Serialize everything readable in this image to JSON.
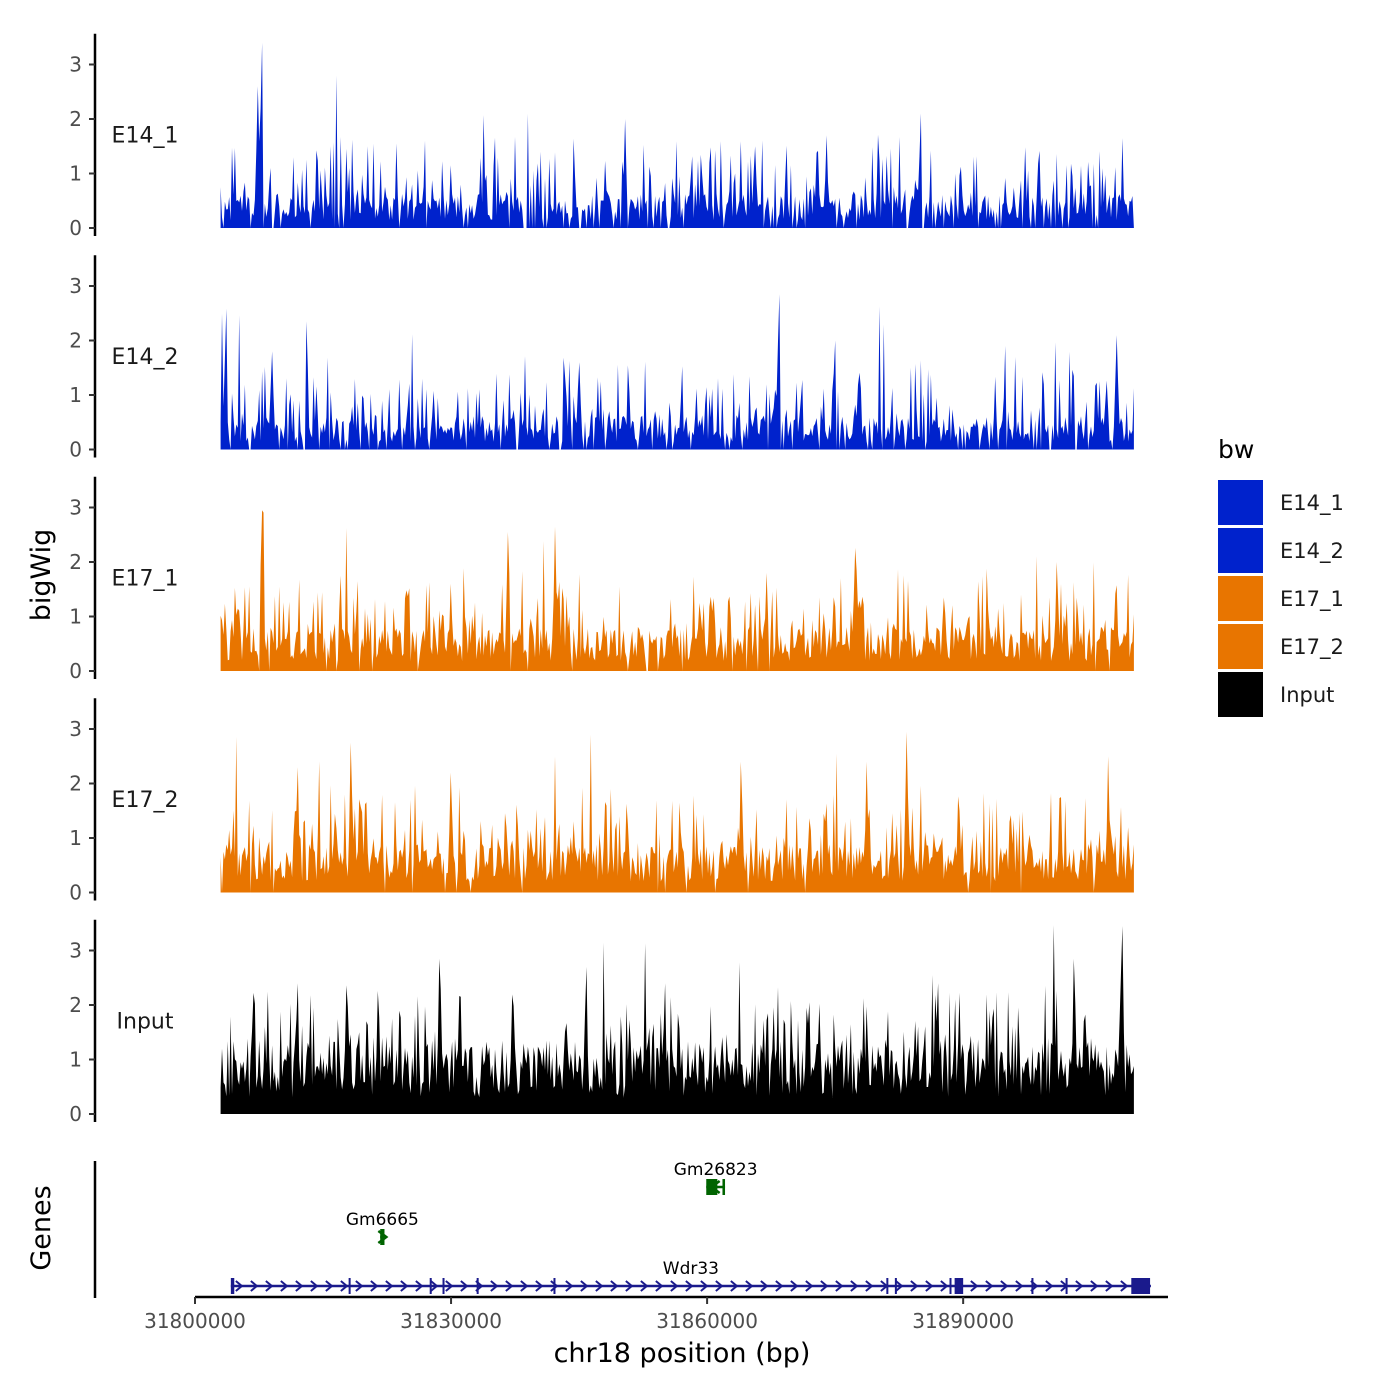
{
  "chart_data": {
    "type": "area",
    "chromosome": "chr18",
    "xlabel": "chr18 position (bp)",
    "ylabel": "bigWig",
    "genes_label": "Genes",
    "xlim": [
      31800000,
      31914000
    ],
    "x_ticks": [
      31800000,
      31830000,
      31860000,
      31890000
    ],
    "x_tick_labels": [
      "31800000",
      "31830000",
      "31860000",
      "31890000"
    ],
    "ylim": [
      0,
      3.6
    ],
    "y_ticks": [
      0,
      1,
      2,
      3
    ],
    "y_tick_labels": [
      "0",
      "1",
      "2",
      "3"
    ],
    "legend": {
      "title": "bw",
      "entries": [
        {
          "name": "E14_1",
          "color": "#0022cc"
        },
        {
          "name": "E14_2",
          "color": "#0022cc"
        },
        {
          "name": "E17_1",
          "color": "#e87500"
        },
        {
          "name": "E17_2",
          "color": "#e87500"
        },
        {
          "name": "Input",
          "color": "#000000"
        }
      ]
    },
    "series": [
      {
        "name": "E14_1",
        "color": "#0022cc",
        "baseline": 0.35,
        "noise": 1.0,
        "gapProb": 0.12,
        "x_range": [
          31803000,
          31910000
        ],
        "peaks": [
          [
            31807800,
            3.4
          ],
          [
            31807400,
            2.6
          ],
          [
            31850400,
            2.0
          ],
          [
            31865600,
            1.5
          ],
          [
            31885000,
            2.1
          ],
          [
            31827000,
            1.6
          ],
          [
            31874000,
            1.7
          ]
        ]
      },
      {
        "name": "E14_2",
        "color": "#0022cc",
        "baseline": 0.35,
        "noise": 1.0,
        "gapProb": 0.1,
        "x_range": [
          31803000,
          31910000
        ],
        "peaks": [
          [
            31868400,
            2.85
          ],
          [
            31813000,
            2.35
          ],
          [
            31908000,
            2.1
          ],
          [
            31875000,
            2.0
          ],
          [
            31809000,
            1.8
          ],
          [
            31845000,
            1.6
          ],
          [
            31895000,
            1.9
          ]
        ]
      },
      {
        "name": "E17_1",
        "color": "#e87500",
        "baseline": 0.45,
        "noise": 1.0,
        "gapProb": 0.04,
        "x_range": [
          31803000,
          31910000
        ],
        "peaks": [
          [
            31807800,
            2.95
          ],
          [
            31836700,
            2.55
          ],
          [
            31842200,
            2.65
          ],
          [
            31819000,
            1.65
          ],
          [
            31867000,
            1.8
          ],
          [
            31901000,
            2.0
          ],
          [
            31830000,
            1.6
          ]
        ]
      },
      {
        "name": "E17_2",
        "color": "#e87500",
        "baseline": 0.5,
        "noise": 1.0,
        "gapProb": 0.04,
        "x_range": [
          31803000,
          31910000
        ],
        "peaks": [
          [
            31883400,
            2.95
          ],
          [
            31818300,
            2.75
          ],
          [
            31878700,
            2.4
          ],
          [
            31907000,
            2.5
          ],
          [
            31812000,
            2.3
          ],
          [
            31830000,
            2.2
          ],
          [
            31864000,
            2.4
          ]
        ]
      },
      {
        "name": "Input",
        "color": "#000000",
        "baseline": 0.75,
        "noise": 1.0,
        "gapProb": 0.0,
        "x_range": [
          31803000,
          31910000
        ],
        "peaks": [
          [
            31908600,
            3.45
          ],
          [
            31903000,
            2.85
          ],
          [
            31828700,
            2.85
          ],
          [
            31845800,
            2.7
          ],
          [
            31887000,
            2.4
          ],
          [
            31812000,
            2.4
          ],
          [
            31855000,
            2.4
          ]
        ]
      }
    ],
    "genes": [
      {
        "name": "Wdr33",
        "start": 31804200,
        "end": 31912000,
        "strand": "+",
        "color": "#1a1a8c",
        "row": 0,
        "exons": [
          [
            31804200,
            31804600
          ],
          [
            31818000,
            31818200
          ],
          [
            31827500,
            31827700
          ],
          [
            31829000,
            31829200
          ],
          [
            31833000,
            31833200
          ],
          [
            31842000,
            31842200
          ],
          [
            31881000,
            31881200
          ],
          [
            31882000,
            31882200
          ],
          [
            31888400,
            31888600
          ],
          [
            31889000,
            31890000
          ],
          [
            31898000,
            31898200
          ],
          [
            31902000,
            31902200
          ],
          [
            31909700,
            31911900
          ]
        ]
      },
      {
        "name": "Gm6665",
        "start": 31821700,
        "end": 31822200,
        "strand": "-",
        "color": "#006400",
        "row": 1,
        "exons": [
          [
            31821700,
            31822200
          ]
        ]
      },
      {
        "name": "Gm26823",
        "start": 31859900,
        "end": 31862100,
        "strand": "+",
        "color": "#006400",
        "row": 2,
        "exons": [
          [
            31859900,
            31861200
          ],
          [
            31861800,
            31862100
          ]
        ]
      }
    ]
  }
}
